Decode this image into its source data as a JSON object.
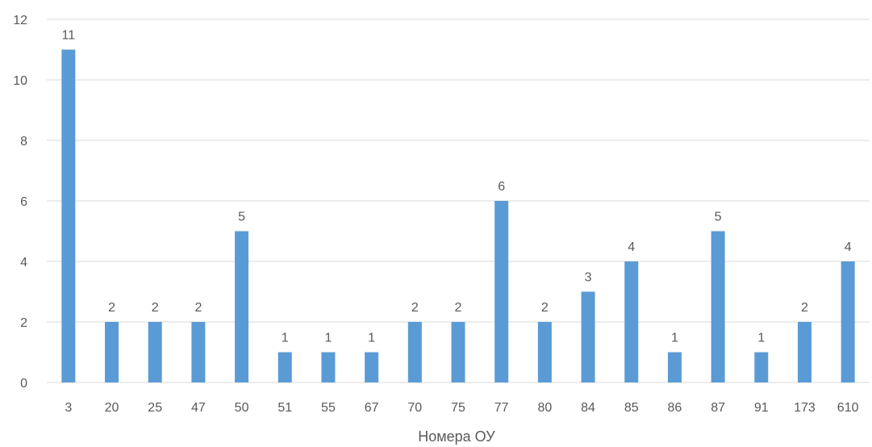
{
  "chart_data": {
    "type": "bar",
    "title": "",
    "xlabel": "Номера ОУ",
    "ylabel": "",
    "ylim": [
      0,
      12
    ],
    "yticks": [
      0,
      2,
      4,
      6,
      8,
      10,
      12
    ],
    "grid": true,
    "legend": "none",
    "categories": [
      "3",
      "20",
      "25",
      "47",
      "50",
      "51",
      "55",
      "67",
      "70",
      "75",
      "77",
      "80",
      "84",
      "85",
      "86",
      "87",
      "91",
      "173",
      "610"
    ],
    "values": [
      11,
      2,
      2,
      2,
      5,
      1,
      1,
      1,
      2,
      2,
      6,
      2,
      3,
      4,
      1,
      5,
      1,
      2,
      4
    ],
    "data_labels": true,
    "colors": {
      "bar": "#5B9BD5",
      "grid": "#D9D9D9",
      "text": "#595959"
    }
  }
}
